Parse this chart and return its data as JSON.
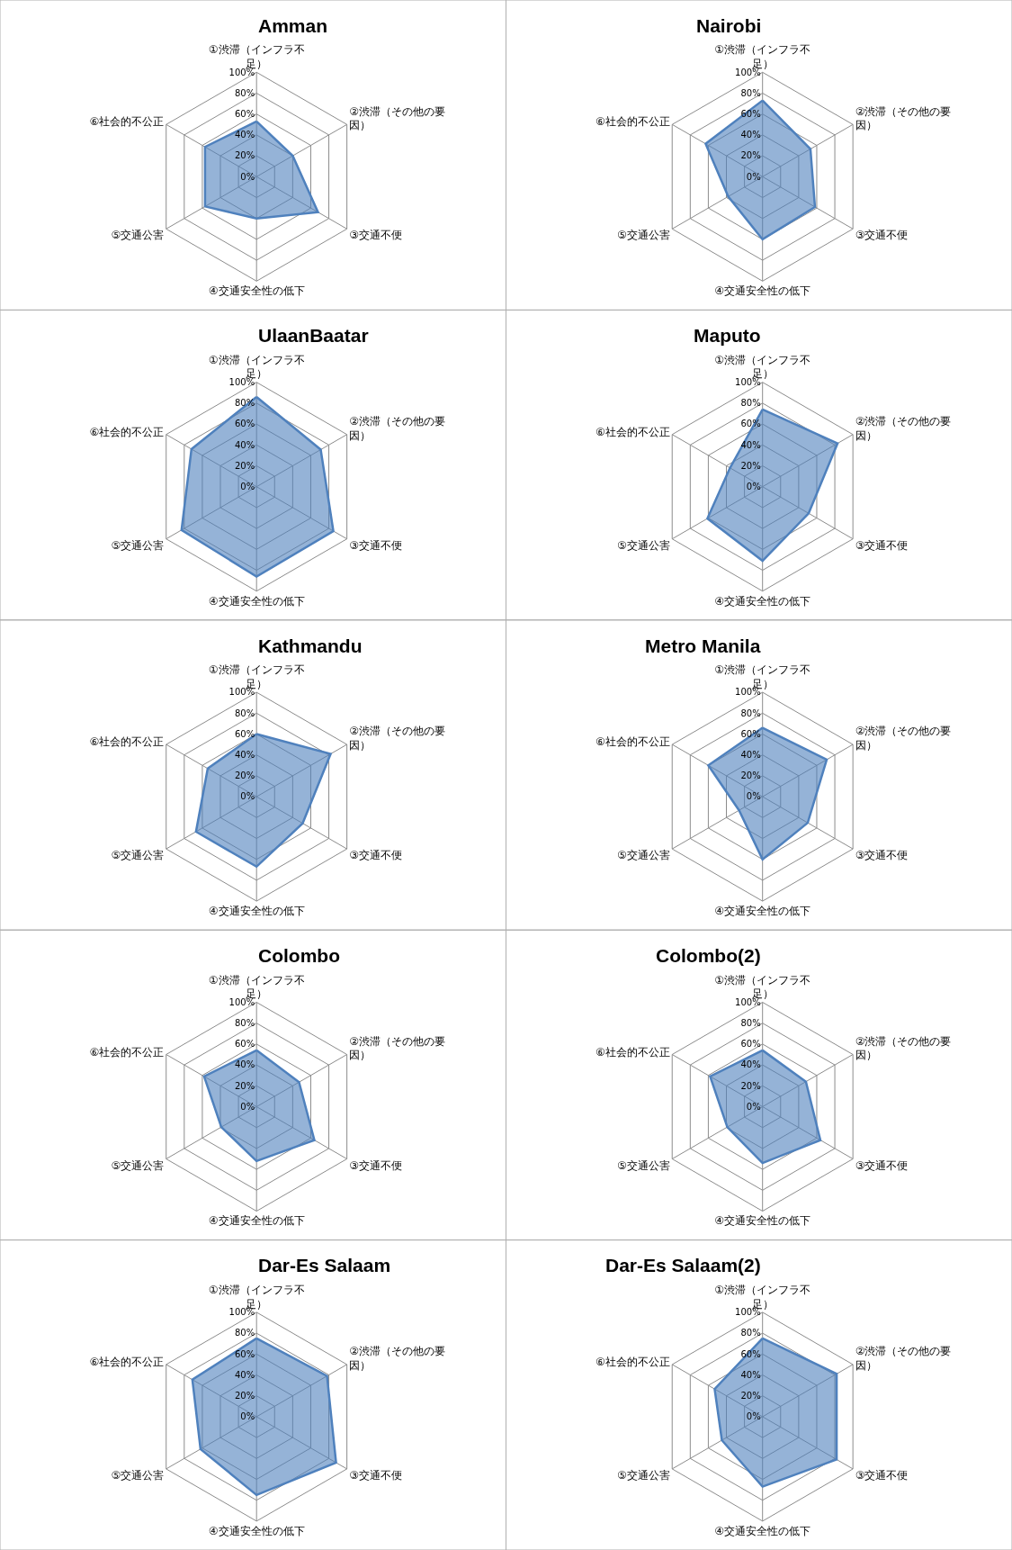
{
  "chart_data": [
    {
      "type": "radar",
      "title": "Amman",
      "categories": [
        "①渋滞（インフラ不足）",
        "②渋滞（その他の要因）",
        "③交通不便",
        "④交通安全性の低下",
        "⑤交通公害",
        "⑥社会的不公正"
      ],
      "series": [
        {
          "color": "#4f81bd",
          "values": [
            53,
            40,
            68,
            40,
            57,
            57
          ]
        }
      ],
      "ylim": [
        0,
        100
      ],
      "yticks": [
        {
          "value": 0,
          "label": "0%"
        },
        {
          "value": 20,
          "label": "20%"
        },
        {
          "value": 40,
          "label": "40%"
        },
        {
          "value": 60,
          "label": "60%"
        },
        {
          "value": 80,
          "label": "80%"
        },
        {
          "value": 100,
          "label": "100%"
        }
      ],
      "grid": true
    },
    {
      "type": "radar",
      "title": "Nairobi",
      "categories": [
        "①渋滞（インフラ不足）",
        "②渋滞（その他の要因）",
        "③交通不便",
        "④交通安全性の低下",
        "⑤交通公害",
        "⑥社会的不公正"
      ],
      "series": [
        {
          "color": "#4f81bd",
          "values": [
            73,
            53,
            58,
            60,
            38,
            63
          ]
        }
      ],
      "ylim": [
        0,
        100
      ],
      "yticks": [
        {
          "value": 0,
          "label": "0%"
        },
        {
          "value": 20,
          "label": "20%"
        },
        {
          "value": 40,
          "label": "40%"
        },
        {
          "value": 60,
          "label": "60%"
        },
        {
          "value": 80,
          "label": "80%"
        },
        {
          "value": 100,
          "label": "100%"
        }
      ],
      "grid": true
    },
    {
      "type": "radar",
      "title": "UlaanBaatar",
      "categories": [
        "①渋滞（インフラ不足）",
        "②渋滞（その他の要因）",
        "③交通不便",
        "④交通安全性の低下",
        "⑤交通公害",
        "⑥社会的不公正"
      ],
      "series": [
        {
          "color": "#4f81bd",
          "values": [
            86,
            71,
            85,
            86,
            83,
            72
          ]
        }
      ],
      "ylim": [
        0,
        100
      ],
      "yticks": [
        {
          "value": 0,
          "label": "0%"
        },
        {
          "value": 20,
          "label": "20%"
        },
        {
          "value": 40,
          "label": "40%"
        },
        {
          "value": 60,
          "label": "60%"
        },
        {
          "value": 80,
          "label": "80%"
        },
        {
          "value": 100,
          "label": "100%"
        }
      ],
      "grid": true
    },
    {
      "type": "radar",
      "title": "Maputo",
      "categories": [
        "①渋滞（インフラ不足）",
        "②渋滞（その他の要因）",
        "③交通不便",
        "④交通安全性の低下",
        "⑤交通公害",
        "⑥社会的不公正"
      ],
      "series": [
        {
          "color": "#4f81bd",
          "values": [
            74,
            83,
            51,
            71,
            61,
            36
          ]
        }
      ],
      "ylim": [
        0,
        100
      ],
      "yticks": [
        {
          "value": 0,
          "label": "0%"
        },
        {
          "value": 20,
          "label": "20%"
        },
        {
          "value": 40,
          "label": "40%"
        },
        {
          "value": 60,
          "label": "60%"
        },
        {
          "value": 80,
          "label": "80%"
        },
        {
          "value": 100,
          "label": "100%"
        }
      ],
      "grid": true
    },
    {
      "type": "radar",
      "title": "Kathmandu",
      "categories": [
        "①渋滞（インフラ不足）",
        "②渋滞（その他の要因）",
        "③交通不便",
        "④交通安全性の低下",
        "⑤交通公害",
        "⑥社会的不公正"
      ],
      "series": [
        {
          "color": "#4f81bd",
          "values": [
            60,
            82,
            51,
            67,
            67,
            54
          ]
        }
      ],
      "ylim": [
        0,
        100
      ],
      "yticks": [
        {
          "value": 0,
          "label": "0%"
        },
        {
          "value": 20,
          "label": "20%"
        },
        {
          "value": 40,
          "label": "40%"
        },
        {
          "value": 60,
          "label": "60%"
        },
        {
          "value": 80,
          "label": "80%"
        },
        {
          "value": 100,
          "label": "100%"
        }
      ],
      "grid": true
    },
    {
      "type": "radar",
      "title": "Metro Manila",
      "categories": [
        "①渋滞（インフラ不足）",
        "②渋滞（その他の要因）",
        "③交通不便",
        "④交通安全性の低下",
        "⑤交通公害",
        "⑥社会的不公正"
      ],
      "series": [
        {
          "color": "#4f81bd",
          "values": [
            66,
            71,
            50,
            60,
            26,
            60
          ]
        }
      ],
      "ylim": [
        0,
        100
      ],
      "yticks": [
        {
          "value": 0,
          "label": "0%"
        },
        {
          "value": 20,
          "label": "20%"
        },
        {
          "value": 40,
          "label": "40%"
        },
        {
          "value": 60,
          "label": "60%"
        },
        {
          "value": 80,
          "label": "80%"
        },
        {
          "value": 100,
          "label": "100%"
        }
      ],
      "grid": true
    },
    {
      "type": "radar",
      "title": "Colombo",
      "categories": [
        "①渋滞（インフラ不足）",
        "②渋滞（その他の要因）",
        "③交通不便",
        "④交通安全性の低下",
        "⑤交通公害",
        "⑥社会的不公正"
      ],
      "series": [
        {
          "color": "#4f81bd",
          "values": [
            54,
            47,
            64,
            52,
            39,
            58
          ]
        }
      ],
      "ylim": [
        0,
        100
      ],
      "yticks": [
        {
          "value": 0,
          "label": "0%"
        },
        {
          "value": 20,
          "label": "20%"
        },
        {
          "value": 40,
          "label": "40%"
        },
        {
          "value": 60,
          "label": "60%"
        },
        {
          "value": 80,
          "label": "80%"
        },
        {
          "value": 100,
          "label": "100%"
        }
      ],
      "grid": true
    },
    {
      "type": "radar",
      "title": "Colombo(2)",
      "categories": [
        "①渋滞（インフラ不足）",
        "②渋滞（その他の要因）",
        "③交通不便",
        "④交通安全性の低下",
        "⑤交通公害",
        "⑥社会的不公正"
      ],
      "series": [
        {
          "color": "#4f81bd",
          "values": [
            54,
            48,
            64,
            54,
            39,
            58
          ]
        }
      ],
      "ylim": [
        0,
        100
      ],
      "yticks": [
        {
          "value": 0,
          "label": "0%"
        },
        {
          "value": 20,
          "label": "20%"
        },
        {
          "value": 40,
          "label": "40%"
        },
        {
          "value": 60,
          "label": "60%"
        },
        {
          "value": 80,
          "label": "80%"
        },
        {
          "value": 100,
          "label": "100%"
        }
      ],
      "grid": true
    },
    {
      "type": "radar",
      "title": "Dar-Es Salaam",
      "categories": [
        "①渋滞（インフラ不足）",
        "②渋滞（その他の要因）",
        "③交通不便",
        "④交通安全性の低下",
        "⑤交通公害",
        "⑥社会的不公正"
      ],
      "series": [
        {
          "color": "#4f81bd",
          "values": [
            75,
            78,
            88,
            75,
            62,
            71
          ]
        }
      ],
      "ylim": [
        0,
        100
      ],
      "yticks": [
        {
          "value": 0,
          "label": "0%"
        },
        {
          "value": 20,
          "label": "20%"
        },
        {
          "value": 40,
          "label": "40%"
        },
        {
          "value": 60,
          "label": "60%"
        },
        {
          "value": 80,
          "label": "80%"
        },
        {
          "value": 100,
          "label": "100%"
        }
      ],
      "grid": true
    },
    {
      "type": "radar",
      "title": "Dar-Es Salaam(2)",
      "categories": [
        "①渋滞（インフラ不足）",
        "②渋滞（その他の要因）",
        "③交通不便",
        "④交通安全性の低下",
        "⑤交通公害",
        "⑥社会的不公正"
      ],
      "series": [
        {
          "color": "#4f81bd",
          "values": [
            75,
            82,
            82,
            67,
            45,
            53
          ]
        }
      ],
      "ylim": [
        0,
        100
      ],
      "yticks": [
        {
          "value": 0,
          "label": "0%"
        },
        {
          "value": 20,
          "label": "20%"
        },
        {
          "value": 40,
          "label": "40%"
        },
        {
          "value": 60,
          "label": "60%"
        },
        {
          "value": 80,
          "label": "80%"
        },
        {
          "value": 100,
          "label": "100%"
        }
      ],
      "grid": true
    }
  ]
}
